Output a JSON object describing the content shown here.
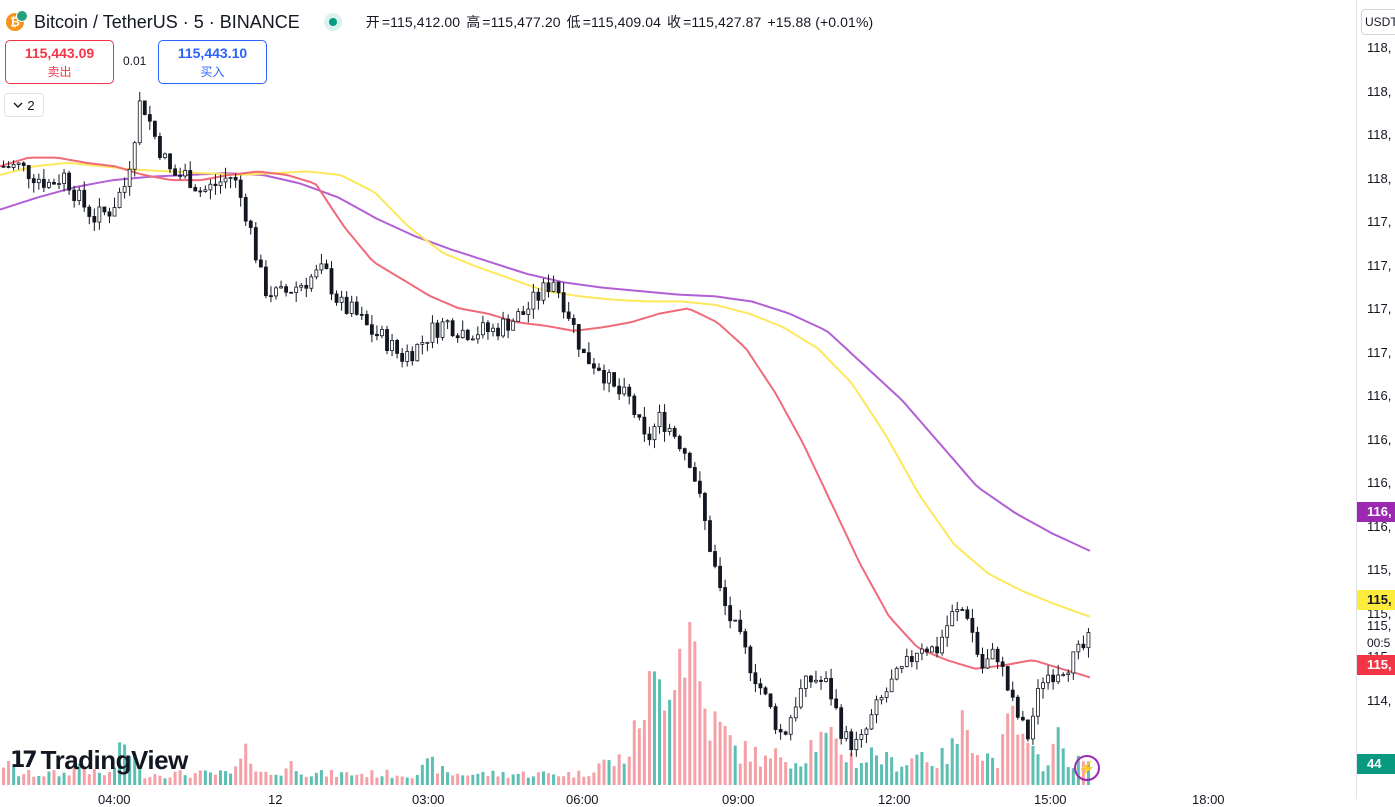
{
  "header": {
    "symbol": "Bitcoin / TetherUS · 5 · BINANCE",
    "coin_glyph": "₿",
    "open_label": "开",
    "open": "=115,412.00",
    "high_label": "高",
    "high": "=115,477.20",
    "low_label": "低",
    "low": "=115,409.04",
    "close_label": "收",
    "close": "=115,427.87",
    "change": "+15.88 (+0.01%)"
  },
  "trade": {
    "sell_price": "115,443.09",
    "sell_label": "卖出",
    "spread": "0.01",
    "buy_price": "115,443.10",
    "buy_label": "买入"
  },
  "collapse": {
    "count": "2"
  },
  "price_axis": {
    "unit": "USDT",
    "ticks": [
      "118,",
      "118,",
      "118,",
      "118,",
      "117,",
      "117,",
      "117,",
      "117,",
      "116,",
      "116,",
      "116,",
      "116,",
      "115,",
      "115,",
      "115,",
      "114,"
    ],
    "badges": [
      {
        "text": "116,",
        "color": "#9c27b0",
        "text_color": "#ffffff"
      },
      {
        "text": "115,",
        "color": "#ffeb3b",
        "text_color": "#131722"
      },
      {
        "text": "115,",
        "color": "#f23645",
        "text_color": "#ffffff"
      },
      {
        "text": "44",
        "color": "#089981",
        "text_color": "#ffffff"
      }
    ],
    "countdown": "00:5",
    "last_tick": "115,"
  },
  "time_axis": {
    "ticks": [
      "04:00",
      "12",
      "03:00",
      "06:00",
      "09:00",
      "12:00",
      "15:00",
      "18:00"
    ]
  },
  "branding": {
    "logo_mark": "17",
    "logo_text": "TradingView"
  },
  "colors": {
    "up": "#089981",
    "down": "#131722",
    "ma_fast": "#f06a7a",
    "ma_mid": "#fce85a",
    "ma_slow": "#b25fd6",
    "vol_up": "#5dbfb3",
    "vol_down": "#f4a0a6"
  },
  "chart_data": {
    "type": "candlestick",
    "price_range": [
      114.3,
      118.6
    ],
    "close_path": [
      117.9,
      117.9,
      117.85,
      117.8,
      117.85,
      117.7,
      117.6,
      117.65,
      117.8,
      118.3,
      118.05,
      117.85,
      117.85,
      117.75,
      117.8,
      117.85,
      117.6,
      117.2,
      117.15,
      117.2,
      117.25,
      117.3,
      117.1,
      117.05,
      116.95,
      116.9,
      116.8,
      116.85,
      116.95,
      117.0,
      116.95,
      116.95,
      116.95,
      117.0,
      117.05,
      117.15,
      117.25,
      117.05,
      116.8,
      116.75,
      116.6,
      116.55,
      116.3,
      116.45,
      116.35,
      116.2,
      115.8,
      115.4,
      115.2,
      115.0,
      114.8,
      114.6,
      114.85,
      114.95,
      114.9,
      114.6,
      114.55,
      114.75,
      114.9,
      115.0,
      115.15,
      115.1,
      115.3,
      115.35,
      115.0,
      115.1,
      114.8,
      114.6,
      114.95,
      115.0,
      115.05,
      115.15
    ],
    "ma_fast": [
      117.9,
      117.95,
      117.95,
      117.92,
      117.9,
      117.85,
      117.82,
      117.82,
      117.85,
      117.87,
      117.85,
      117.8,
      117.55,
      117.35,
      117.25,
      117.15,
      117.08,
      117.05,
      117.0,
      116.98,
      116.95,
      116.97,
      117.0,
      117.05,
      117.08,
      117.0,
      116.85,
      116.6,
      116.3,
      115.95,
      115.6,
      115.3,
      115.12,
      115.05,
      115.0,
      115.02,
      115.05,
      115.0,
      114.95
    ],
    "ma_mid": [
      117.85,
      117.9,
      117.92,
      117.9,
      117.88,
      117.87,
      117.86,
      117.85,
      117.86,
      117.87,
      117.85,
      117.75,
      117.55,
      117.4,
      117.32,
      117.25,
      117.18,
      117.15,
      117.13,
      117.12,
      117.12,
      117.1,
      117.05,
      116.97,
      116.85,
      116.65,
      116.35,
      116.0,
      115.72,
      115.55,
      115.45,
      115.37,
      115.3
    ],
    "ma_slow": [
      117.65,
      117.72,
      117.78,
      117.82,
      117.84,
      117.85,
      117.86,
      117.85,
      117.8,
      117.72,
      117.6,
      117.5,
      117.42,
      117.35,
      117.28,
      117.23,
      117.2,
      117.18,
      117.16,
      117.15,
      117.12,
      117.05,
      116.95,
      116.75,
      116.55,
      116.3,
      116.05,
      115.9,
      115.78,
      115.68
    ],
    "volume": [
      2,
      1,
      1,
      1,
      1,
      2,
      1,
      1,
      4,
      1,
      1,
      1,
      1,
      1,
      1,
      1,
      3,
      1,
      1,
      2,
      1,
      1,
      1,
      1,
      1,
      1,
      1,
      1,
      2,
      1,
      1,
      1,
      1,
      1,
      1,
      1,
      1,
      1,
      1,
      2,
      2,
      3,
      8,
      9,
      12,
      14,
      6,
      5,
      3,
      3,
      2,
      3,
      2,
      4,
      4,
      3,
      2,
      3,
      2,
      2,
      3,
      2,
      3,
      6,
      3,
      2,
      6,
      3,
      2,
      4,
      2,
      2
    ]
  }
}
